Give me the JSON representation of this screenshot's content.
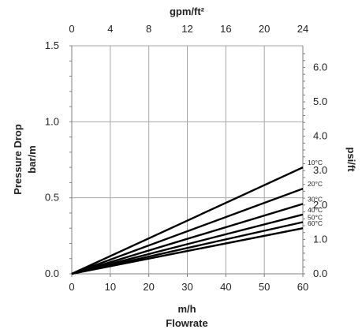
{
  "chart_data": {
    "type": "line",
    "grid": true,
    "legend": "none",
    "x_bottom": {
      "label_unit": "m/h",
      "label": "Flowrate",
      "range": [
        0,
        60
      ],
      "ticks": [
        "0",
        "10",
        "20",
        "30",
        "40",
        "50",
        "60"
      ]
    },
    "x_top": {
      "label": "gpm/ft²",
      "range": [
        0,
        24
      ],
      "ticks": [
        "0",
        "4",
        "8",
        "12",
        "16",
        "20",
        "24"
      ]
    },
    "y_left": {
      "label_line1": "Pressure Drop",
      "label_line2": "bar/m",
      "range": [
        0,
        1.5
      ],
      "ticks": [
        "0.0",
        "0.5",
        "1.0",
        "1.5"
      ]
    },
    "y_right": {
      "label": "psi/ft",
      "range": [
        0,
        6.63
      ],
      "ticks": [
        "0.0",
        "1.0",
        "2.0",
        "3.0",
        "4.0",
        "5.0",
        "6.0"
      ]
    },
    "series": [
      {
        "name": "10°C",
        "x": [
          0,
          60
        ],
        "y": [
          0,
          0.7
        ]
      },
      {
        "name": "20°C",
        "x": [
          0,
          60
        ],
        "y": [
          0,
          0.56
        ]
      },
      {
        "name": "30°C",
        "x": [
          0,
          60
        ],
        "y": [
          0,
          0.46
        ]
      },
      {
        "name": "40°C",
        "x": [
          0,
          60
        ],
        "y": [
          0,
          0.39
        ]
      },
      {
        "name": "50°C",
        "x": [
          0,
          60
        ],
        "y": [
          0,
          0.34
        ]
      },
      {
        "name": "60°C",
        "x": [
          0,
          60
        ],
        "y": [
          0,
          0.3
        ]
      }
    ],
    "colors": {
      "line": "#000000",
      "grid": "#a6a6a6",
      "axis": "#7f7f7f"
    }
  }
}
